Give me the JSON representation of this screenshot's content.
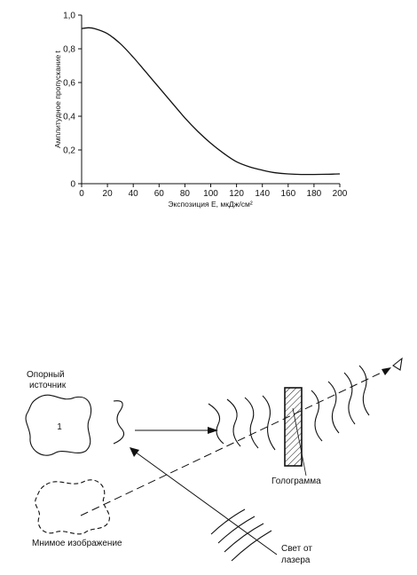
{
  "chart_data": {
    "type": "line",
    "xlabel": "Экспозиция E, мкДж/см²",
    "ylabel": "Амплитудное пропускание t",
    "xlim": [
      0,
      200
    ],
    "ylim": [
      0,
      1.0
    ],
    "x_ticks": [
      "0",
      "20",
      "40",
      "60",
      "80",
      "100",
      "120",
      "140",
      "160",
      "180",
      "200"
    ],
    "y_ticks": [
      "0",
      "0,2",
      "0,4",
      "0,6",
      "0,8",
      "1,0"
    ],
    "grid": false,
    "series": [
      {
        "x": [
          0,
          5,
          10,
          20,
          30,
          40,
          50,
          60,
          70,
          80,
          90,
          100,
          110,
          120,
          130,
          140,
          150,
          160,
          170,
          180,
          190,
          200
        ],
        "y": [
          0.92,
          0.925,
          0.92,
          0.89,
          0.83,
          0.75,
          0.66,
          0.57,
          0.48,
          0.39,
          0.31,
          0.24,
          0.18,
          0.13,
          0.1,
          0.08,
          0.065,
          0.058,
          0.055,
          0.055,
          0.056,
          0.058
        ]
      }
    ]
  },
  "diagram": {
    "reference_source_label_1": "Опорный",
    "reference_source_label_2": "источник",
    "source_marker": "1",
    "virtual_image_label": "Мнимое изображение",
    "hologram_label": "Голограмма",
    "laser_label_1": "Свет от",
    "laser_label_2": "лазера"
  }
}
